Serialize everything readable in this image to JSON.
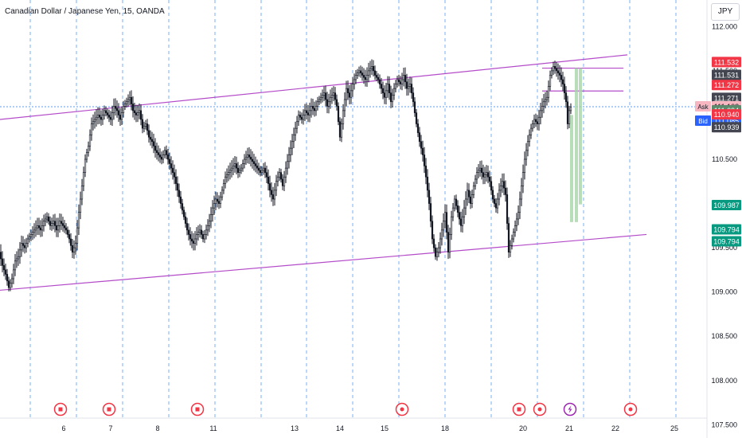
{
  "header": {
    "title": "Canadian Dollar / Japanese Yen, 15, OANDA"
  },
  "currency_button": {
    "label": "JPY"
  },
  "colors": {
    "channel": "#b44bc9",
    "candle": "#131722",
    "axis_text": "#131722",
    "grid_v": "#5b9cf6",
    "price_line": "#5b9cf6",
    "label_red": "#f23645",
    "label_black": "#434651",
    "label_green": "#089981",
    "label_grey": "#5d8a6c",
    "label_blue": "#2962ff",
    "label_ask_bg": "#f7b6c0",
    "range_fill": "#a5d6a7",
    "event_red": "#f23645",
    "event_purple": "#9c27b0"
  },
  "chart_data": {
    "type": "candlestick",
    "title": "Canadian Dollar / Japanese Yen, 15, OANDA",
    "ylim": [
      107.35,
      112.3
    ],
    "y_ticks": [
      "112.000",
      "111.500",
      "111.000",
      "110.500",
      "110.000",
      "109.500",
      "109.000",
      "108.500",
      "108.000",
      "107.500"
    ],
    "x_ticks": [
      "6",
      "7",
      "8",
      "11",
      "13",
      "14",
      "15",
      "18",
      "20",
      "21",
      "22",
      "25"
    ],
    "price_path": [
      [
        0,
        109.45
      ],
      [
        4,
        109.3
      ],
      [
        8,
        109.2
      ],
      [
        12,
        109.05
      ],
      [
        16,
        109.15
      ],
      [
        20,
        109.35
      ],
      [
        24,
        109.4
      ],
      [
        28,
        109.55
      ],
      [
        32,
        109.5
      ],
      [
        36,
        109.6
      ],
      [
        40,
        109.65
      ],
      [
        44,
        109.7
      ],
      [
        48,
        109.75
      ],
      [
        52,
        109.7
      ],
      [
        56,
        109.8
      ],
      [
        60,
        109.85
      ],
      [
        64,
        109.75
      ],
      [
        68,
        109.8
      ],
      [
        72,
        109.7
      ],
      [
        76,
        109.8
      ],
      [
        80,
        109.75
      ],
      [
        84,
        109.7
      ],
      [
        88,
        109.6
      ],
      [
        92,
        109.45
      ],
      [
        96,
        109.55
      ],
      [
        100,
        109.9
      ],
      [
        104,
        110.2
      ],
      [
        108,
        110.5
      ],
      [
        112,
        110.65
      ],
      [
        116,
        110.9
      ],
      [
        120,
        110.95
      ],
      [
        124,
        111.0
      ],
      [
        128,
        110.95
      ],
      [
        132,
        111.05
      ],
      [
        136,
        111.0
      ],
      [
        140,
        110.95
      ],
      [
        144,
        111.1
      ],
      [
        148,
        111.05
      ],
      [
        152,
        110.95
      ],
      [
        156,
        111.1
      ],
      [
        160,
        111.15
      ],
      [
        164,
        111.2
      ],
      [
        168,
        111.05
      ],
      [
        172,
        111.0
      ],
      [
        176,
        111.05
      ],
      [
        180,
        110.85
      ],
      [
        184,
        110.9
      ],
      [
        188,
        110.75
      ],
      [
        192,
        110.7
      ],
      [
        196,
        110.6
      ],
      [
        200,
        110.55
      ],
      [
        204,
        110.5
      ],
      [
        208,
        110.6
      ],
      [
        212,
        110.5
      ],
      [
        216,
        110.4
      ],
      [
        220,
        110.3
      ],
      [
        224,
        110.15
      ],
      [
        228,
        110.0
      ],
      [
        232,
        109.85
      ],
      [
        236,
        109.7
      ],
      [
        240,
        109.6
      ],
      [
        244,
        109.55
      ],
      [
        248,
        109.65
      ],
      [
        252,
        109.7
      ],
      [
        256,
        109.6
      ],
      [
        260,
        109.7
      ],
      [
        264,
        109.8
      ],
      [
        268,
        109.95
      ],
      [
        272,
        110.05
      ],
      [
        276,
        110.0
      ],
      [
        280,
        110.15
      ],
      [
        284,
        110.3
      ],
      [
        288,
        110.35
      ],
      [
        292,
        110.4
      ],
      [
        296,
        110.45
      ],
      [
        300,
        110.35
      ],
      [
        304,
        110.4
      ],
      [
        308,
        110.5
      ],
      [
        312,
        110.55
      ],
      [
        316,
        110.5
      ],
      [
        320,
        110.45
      ],
      [
        324,
        110.4
      ],
      [
        328,
        110.35
      ],
      [
        332,
        110.4
      ],
      [
        336,
        110.3
      ],
      [
        340,
        110.15
      ],
      [
        344,
        110.05
      ],
      [
        348,
        110.25
      ],
      [
        352,
        110.35
      ],
      [
        356,
        110.2
      ],
      [
        360,
        110.4
      ],
      [
        364,
        110.55
      ],
      [
        368,
        110.7
      ],
      [
        372,
        110.85
      ],
      [
        376,
        111.0
      ],
      [
        380,
        110.95
      ],
      [
        384,
        111.05
      ],
      [
        388,
        111.0
      ],
      [
        392,
        111.1
      ],
      [
        396,
        111.05
      ],
      [
        400,
        111.15
      ],
      [
        404,
        111.2
      ],
      [
        408,
        111.25
      ],
      [
        412,
        111.1
      ],
      [
        416,
        111.2
      ],
      [
        420,
        111.25
      ],
      [
        424,
        111.1
      ],
      [
        428,
        110.75
      ],
      [
        432,
        111.05
      ],
      [
        436,
        111.3
      ],
      [
        440,
        111.2
      ],
      [
        444,
        111.35
      ],
      [
        448,
        111.45
      ],
      [
        452,
        111.5
      ],
      [
        456,
        111.45
      ],
      [
        460,
        111.4
      ],
      [
        464,
        111.5
      ],
      [
        468,
        111.55
      ],
      [
        472,
        111.45
      ],
      [
        476,
        111.4
      ],
      [
        480,
        111.3
      ],
      [
        484,
        111.2
      ],
      [
        488,
        111.35
      ],
      [
        492,
        111.15
      ],
      [
        496,
        111.3
      ],
      [
        500,
        111.4
      ],
      [
        504,
        111.35
      ],
      [
        508,
        111.45
      ],
      [
        512,
        111.3
      ],
      [
        516,
        111.35
      ],
      [
        520,
        111.15
      ],
      [
        524,
        110.9
      ],
      [
        528,
        110.7
      ],
      [
        532,
        110.55
      ],
      [
        536,
        110.3
      ],
      [
        540,
        110.0
      ],
      [
        544,
        109.6
      ],
      [
        548,
        109.4
      ],
      [
        552,
        109.5
      ],
      [
        556,
        109.7
      ],
      [
        560,
        109.9
      ],
      [
        564,
        109.45
      ],
      [
        568,
        109.85
      ],
      [
        572,
        110.05
      ],
      [
        576,
        109.9
      ],
      [
        580,
        109.75
      ],
      [
        584,
        109.95
      ],
      [
        588,
        110.15
      ],
      [
        592,
        110.0
      ],
      [
        596,
        110.2
      ],
      [
        600,
        110.35
      ],
      [
        604,
        110.4
      ],
      [
        608,
        110.3
      ],
      [
        612,
        110.35
      ],
      [
        616,
        110.25
      ],
      [
        620,
        110.05
      ],
      [
        624,
        109.95
      ],
      [
        628,
        110.15
      ],
      [
        632,
        110.25
      ],
      [
        636,
        110.1
      ],
      [
        640,
        109.45
      ],
      [
        644,
        109.6
      ],
      [
        648,
        109.75
      ],
      [
        652,
        109.9
      ],
      [
        656,
        110.2
      ],
      [
        660,
        110.5
      ],
      [
        664,
        110.7
      ],
      [
        668,
        110.85
      ],
      [
        672,
        110.95
      ],
      [
        676,
        110.9
      ],
      [
        680,
        111.05
      ],
      [
        684,
        111.15
      ],
      [
        688,
        111.2
      ],
      [
        692,
        111.45
      ],
      [
        696,
        111.55
      ],
      [
        700,
        111.5
      ],
      [
        704,
        111.45
      ],
      [
        708,
        111.35
      ],
      [
        712,
        111.15
      ],
      [
        714,
        110.9
      ],
      [
        716,
        111.05
      ],
      [
        718,
        111.09
      ]
    ],
    "channel_lines": [
      {
        "name": "upper",
        "from": [
          0,
          110.95
        ],
        "to": [
          788,
          111.68
        ]
      },
      {
        "name": "lower",
        "from": [
          0,
          109.02
        ],
        "to": [
          812,
          109.65
        ]
      }
    ],
    "horizontal_segments": [
      {
        "price": 111.53,
        "from": 681,
        "to": 783
      },
      {
        "price": 111.272,
        "from": 681,
        "to": 783
      }
    ],
    "range_bars": [
      {
        "x": 718,
        "top": 111.0,
        "bottom": 109.79
      },
      {
        "x": 724,
        "top": 111.53,
        "bottom": 109.79
      },
      {
        "x": 729,
        "top": 111.53,
        "bottom": 109.99
      }
    ],
    "dotted_price_line": 111.094,
    "vertical_dashed_x": [
      38,
      96,
      154,
      212,
      270,
      328,
      385,
      443,
      501,
      559,
      617,
      675,
      733,
      791,
      849
    ],
    "price_labels": [
      {
        "text": "111.532",
        "price": 111.532,
        "color": "label_red"
      },
      {
        "text": "111.531",
        "price": 111.531,
        "color": "label_black"
      },
      {
        "text": "111.272",
        "price": 111.272,
        "color": "label_red"
      },
      {
        "text": "111.271",
        "price": 111.271,
        "color": "label_black"
      },
      {
        "text": "111.103",
        "price": 111.103,
        "color": "label_ask_bg",
        "tag": "Ask"
      },
      {
        "text": "111.094",
        "price": 111.094,
        "color": "label_grey",
        "sub": "13:07"
      },
      {
        "text": "111.085",
        "price": 111.085,
        "color": "label_blue",
        "tag": "Bid"
      },
      {
        "text": "110.940",
        "price": 110.94,
        "color": "label_red"
      },
      {
        "text": "110.939",
        "price": 110.939,
        "color": "label_black"
      },
      {
        "text": "109.987",
        "price": 109.987,
        "color": "label_green"
      },
      {
        "text": "109.794",
        "price": 109.794,
        "color": "label_green"
      },
      {
        "text": "109.794",
        "price": 109.794,
        "color": "label_green"
      }
    ],
    "events": [
      {
        "x": 76,
        "kind": "flag"
      },
      {
        "x": 137,
        "kind": "flag"
      },
      {
        "x": 248,
        "kind": "flag"
      },
      {
        "x": 505,
        "kind": "dot"
      },
      {
        "x": 652,
        "kind": "flag"
      },
      {
        "x": 678,
        "kind": "dot"
      },
      {
        "x": 716,
        "kind": "bolt"
      },
      {
        "x": 792,
        "kind": "dot"
      }
    ]
  }
}
